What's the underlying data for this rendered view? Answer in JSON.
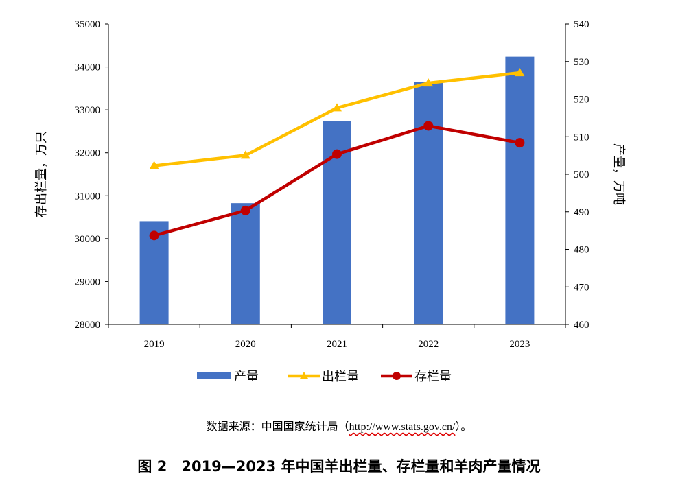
{
  "chart_data": {
    "type": "bar+line",
    "categories": [
      "2019",
      "2020",
      "2021",
      "2022",
      "2023"
    ],
    "left_axis": {
      "label": "存出栏量，万只",
      "ylim": [
        28000,
        35000
      ],
      "ticks": [
        28000,
        29000,
        30000,
        31000,
        32000,
        33000,
        34000,
        35000
      ]
    },
    "right_axis": {
      "label": "产量，万吨",
      "ylim": [
        460,
        540
      ],
      "ticks": [
        460,
        470,
        480,
        490,
        500,
        510,
        520,
        530,
        540
      ]
    },
    "series": [
      {
        "name": "产量",
        "type": "bar",
        "axis": "right",
        "color": "#4472C4",
        "values": [
          487.5,
          492.3,
          514.1,
          524.5,
          531.3
        ]
      },
      {
        "name": "出栏量",
        "type": "line",
        "marker": "triangle",
        "axis": "left",
        "color": "#FFC000",
        "values": [
          31699,
          31941,
          33045,
          33624,
          33864
        ]
      },
      {
        "name": "存栏量",
        "type": "line",
        "marker": "circle",
        "axis": "left",
        "color": "#C00000",
        "values": [
          30072,
          30655,
          31969,
          32627,
          32233
        ]
      }
    ],
    "legend": "bottom",
    "grid": false
  },
  "source": {
    "prefix": "数据来源：中国国家统计局（",
    "url": "http://www.stats.gov.cn/",
    "suffix": "）。"
  },
  "caption": "图 2　2019—2023 年中国羊出栏量、存栏量和羊肉产量情况"
}
